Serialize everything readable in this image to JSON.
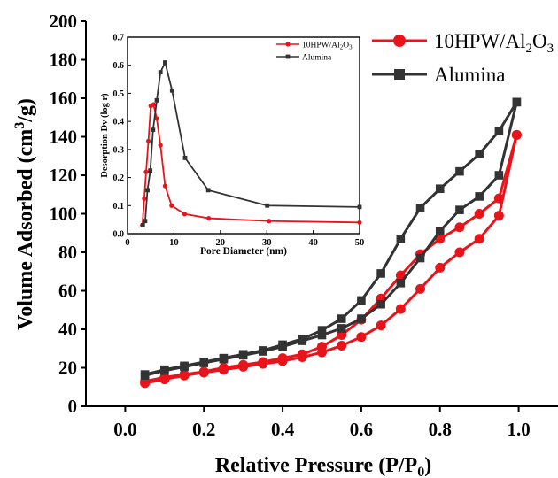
{
  "chart_data": [
    {
      "type": "line",
      "name_id": "main",
      "xlabel": "Relative Pressure (P/P",
      "xlabel_sub": "0",
      "xlabel_end": ")",
      "ylabel": "Volume Adsorbed (cm",
      "ylabel_sup": "3",
      "ylabel_end": "/g)",
      "xlim": [
        -0.1,
        1.1
      ],
      "ylim": [
        0,
        200
      ],
      "xticks": [
        0.0,
        0.2,
        0.4,
        0.6,
        0.8,
        1.0
      ],
      "xtick_labels": [
        "0.0",
        "0.2",
        "0.4",
        "0.6",
        "0.8",
        "1.0"
      ],
      "yticks": [
        0,
        20,
        40,
        60,
        80,
        100,
        120,
        140,
        160,
        180,
        200
      ],
      "ytick_labels": [
        "0",
        "20",
        "40",
        "60",
        "80",
        "100",
        "120",
        "140",
        "160",
        "180",
        "200"
      ],
      "grid": false,
      "legend_position": "top-right",
      "series": [
        {
          "name": "10HPW/Al",
          "name_sub": "2",
          "name_mid": "O",
          "name_sub2": "3",
          "color": "#e8141b",
          "marker": "circle",
          "adsorption": {
            "x": [
              0.05,
              0.1,
              0.15,
              0.2,
              0.25,
              0.3,
              0.35,
              0.4,
              0.45,
              0.5,
              0.55,
              0.6,
              0.65,
              0.7,
              0.75,
              0.8,
              0.85,
              0.9,
              0.95,
              0.995
            ],
            "y": [
              12,
              14,
              16,
              17.5,
              19,
              20.5,
              22,
              23.5,
              25.5,
              28,
              31.5,
              36,
              42,
              50.5,
              61,
              72,
              80,
              87,
              99,
              141
            ]
          },
          "desorption": {
            "x": [
              0.995,
              0.95,
              0.9,
              0.85,
              0.8,
              0.75,
              0.7,
              0.65,
              0.6,
              0.55,
              0.5,
              0.45,
              0.4,
              0.35,
              0.3,
              0.25,
              0.2,
              0.15,
              0.1,
              0.05
            ],
            "y": [
              141,
              108,
              100,
              93,
              87,
              79,
              68,
              56,
              45,
              37,
              31,
              27,
              25,
              23,
              21.5,
              20,
              18,
              16.5,
              15,
              13
            ]
          }
        },
        {
          "name": "Alumina",
          "color": "#333333",
          "marker": "square",
          "adsorption": {
            "x": [
              0.05,
              0.1,
              0.15,
              0.2,
              0.25,
              0.3,
              0.35,
              0.4,
              0.45,
              0.5,
              0.55,
              0.6,
              0.65,
              0.7,
              0.75,
              0.8,
              0.85,
              0.9,
              0.95,
              0.995
            ],
            "y": [
              16,
              18.5,
              20.5,
              22.5,
              24.5,
              26.5,
              28.5,
              31,
              34,
              37,
              40.5,
              45.5,
              53,
              64,
              77,
              91,
              102,
              109,
              120,
              158
            ]
          },
          "desorption": {
            "x": [
              0.995,
              0.95,
              0.9,
              0.85,
              0.8,
              0.75,
              0.7,
              0.65,
              0.6,
              0.55,
              0.5,
              0.45,
              0.4,
              0.35,
              0.3,
              0.25,
              0.2,
              0.15,
              0.1,
              0.05
            ],
            "y": [
              158,
              143,
              131,
              122,
              113,
              103,
              87,
              69,
              55,
              45.5,
              39.5,
              35,
              32,
              29,
              27,
              25,
              23,
              21,
              19,
              16.5
            ]
          }
        }
      ]
    },
    {
      "type": "line",
      "name_id": "inset",
      "xlabel": "Pore Diameter (nm)",
      "ylabel": "Desorption Dv (log r)",
      "xlim": [
        0,
        50
      ],
      "ylim": [
        0,
        0.7
      ],
      "xticks": [
        0,
        10,
        20,
        30,
        40,
        50
      ],
      "xtick_labels": [
        "0",
        "10",
        "20",
        "30",
        "40",
        "50"
      ],
      "yticks": [
        0.0,
        0.1,
        0.2,
        0.3,
        0.4,
        0.5,
        0.6,
        0.7
      ],
      "ytick_labels": [
        "0.0",
        "0.1",
        "0.2",
        "0.3",
        "0.4",
        "0.5",
        "0.6",
        "0.7"
      ],
      "grid": false,
      "legend_position": "top-right",
      "series": [
        {
          "name": "10HPW/Al",
          "name_sub": "2",
          "name_mid": "O",
          "name_sub2": "3",
          "color": "#e8141b",
          "marker": "circle",
          "x": [
            3.2,
            3.6,
            4.0,
            4.5,
            5.0,
            5.6,
            6.3,
            7.1,
            8.1,
            9.5,
            12.3,
            17.5,
            30.5,
            50
          ],
          "y": [
            0.03,
            0.125,
            0.22,
            0.33,
            0.455,
            0.46,
            0.41,
            0.315,
            0.17,
            0.1,
            0.07,
            0.055,
            0.045,
            0.04
          ]
        },
        {
          "name": "Alumina",
          "color": "#333333",
          "marker": "square",
          "x": [
            3.3,
            3.8,
            4.3,
            4.9,
            5.5,
            6.3,
            7.1,
            8.1,
            9.6,
            12.4,
            17.4,
            30.1,
            50
          ],
          "y": [
            0.03,
            0.045,
            0.155,
            0.225,
            0.37,
            0.475,
            0.575,
            0.61,
            0.51,
            0.27,
            0.155,
            0.1,
            0.095
          ]
        }
      ]
    }
  ]
}
